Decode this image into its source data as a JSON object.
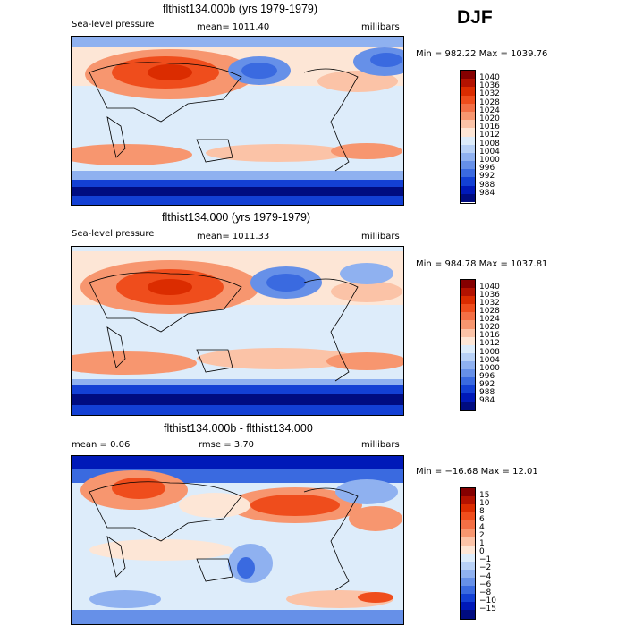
{
  "season": "DJF",
  "units": "millibars",
  "panels": [
    {
      "title": "flthist134.000b (yrs 1979-1979)",
      "left_label": "Sea-level pressure",
      "mean_label": "mean=  1011.40",
      "right_label": "millibars",
      "minmax": "Min = 982.22  Max = 1039.76",
      "colorbar": [
        {
          "label": "1040",
          "color": "#850000"
        },
        {
          "label": "1036",
          "color": "#b31200"
        },
        {
          "label": "1032",
          "color": "#db2c00"
        },
        {
          "label": "1028",
          "color": "#ef4d1c"
        },
        {
          "label": "1024",
          "color": "#f36f45"
        },
        {
          "label": "1020",
          "color": "#f7966f"
        },
        {
          "label": "1016",
          "color": "#fbc3a7"
        },
        {
          "label": "1012",
          "color": "#fde6d6"
        },
        {
          "label": "1008",
          "color": "#ddecfa"
        },
        {
          "label": "1004",
          "color": "#b8d1f6"
        },
        {
          "label": "1000",
          "color": "#8fb1f0"
        },
        {
          "label": "996",
          "color": "#6690e8"
        },
        {
          "label": "992",
          "color": "#3a6ae0"
        },
        {
          "label": "988",
          "color": "#1340d4"
        },
        {
          "label": "984",
          "color": "#0019b8"
        },
        {
          "label": "",
          "color": "#000c80"
        }
      ]
    },
    {
      "title": "flthist134.000 (yrs 1979-1979)",
      "left_label": "Sea-level pressure",
      "mean_label": "mean=  1011.33",
      "right_label": "millibars",
      "minmax": "Min = 984.78  Max = 1037.81",
      "colorbar": [
        {
          "label": "1040",
          "color": "#850000"
        },
        {
          "label": "1036",
          "color": "#b31200"
        },
        {
          "label": "1032",
          "color": "#db2c00"
        },
        {
          "label": "1028",
          "color": "#ef4d1c"
        },
        {
          "label": "1024",
          "color": "#f36f45"
        },
        {
          "label": "1020",
          "color": "#f7966f"
        },
        {
          "label": "1016",
          "color": "#fbc3a7"
        },
        {
          "label": "1012",
          "color": "#fde6d6"
        },
        {
          "label": "1008",
          "color": "#ddecfa"
        },
        {
          "label": "1004",
          "color": "#b8d1f6"
        },
        {
          "label": "1000",
          "color": "#8fb1f0"
        },
        {
          "label": "996",
          "color": "#6690e8"
        },
        {
          "label": "992",
          "color": "#3a6ae0"
        },
        {
          "label": "988",
          "color": "#1340d4"
        },
        {
          "label": "984",
          "color": "#0019b8"
        },
        {
          "label": "",
          "color": "#000c80"
        }
      ]
    },
    {
      "title": "flthist134.000b - flthist134.000",
      "left_label": "mean =    0.06",
      "mean_label": "rmse =    3.70",
      "right_label": "millibars",
      "minmax": "Min = −16.68  Max =  12.01",
      "colorbar": [
        {
          "label": "15",
          "color": "#850000"
        },
        {
          "label": "10",
          "color": "#b31200"
        },
        {
          "label": "8",
          "color": "#db2c00"
        },
        {
          "label": "6",
          "color": "#ef4d1c"
        },
        {
          "label": "4",
          "color": "#f36f45"
        },
        {
          "label": "2",
          "color": "#f7966f"
        },
        {
          "label": "1",
          "color": "#fbc3a7"
        },
        {
          "label": "0",
          "color": "#fde6d6"
        },
        {
          "label": "−1",
          "color": "#ddecfa"
        },
        {
          "label": "−2",
          "color": "#b8d1f6"
        },
        {
          "label": "−4",
          "color": "#8fb1f0"
        },
        {
          "label": "−6",
          "color": "#6690e8"
        },
        {
          "label": "−8",
          "color": "#3a6ae0"
        },
        {
          "label": "−10",
          "color": "#1340d4"
        },
        {
          "label": "−15",
          "color": "#0019b8"
        },
        {
          "label": "",
          "color": "#000c80"
        }
      ]
    }
  ],
  "chart_data": [
    {
      "type": "heatmap",
      "title": "flthist134.000b (yrs 1979-1979)",
      "variable": "Sea-level pressure",
      "units": "millibars",
      "mean": 1011.4,
      "min": 982.22,
      "max": 1039.76,
      "levels": [
        984,
        988,
        992,
        996,
        1000,
        1004,
        1008,
        1012,
        1016,
        1020,
        1024,
        1028,
        1032,
        1036,
        1040
      ]
    },
    {
      "type": "heatmap",
      "title": "flthist134.000 (yrs 1979-1979)",
      "variable": "Sea-level pressure",
      "units": "millibars",
      "mean": 1011.33,
      "min": 984.78,
      "max": 1037.81,
      "levels": [
        984,
        988,
        992,
        996,
        1000,
        1004,
        1008,
        1012,
        1016,
        1020,
        1024,
        1028,
        1032,
        1036,
        1040
      ]
    },
    {
      "type": "heatmap",
      "title": "flthist134.000b - flthist134.000",
      "units": "millibars",
      "mean": 0.06,
      "rmse": 3.7,
      "min": -16.68,
      "max": 12.01,
      "levels": [
        -15,
        -10,
        -8,
        -6,
        -4,
        -2,
        -1,
        0,
        1,
        2,
        4,
        6,
        8,
        10,
        15
      ]
    }
  ]
}
